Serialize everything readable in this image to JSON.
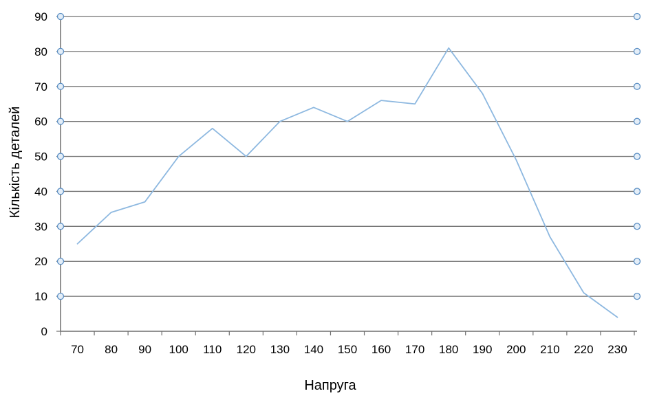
{
  "chart_data": {
    "type": "line",
    "title": "",
    "xlabel": "Напруга",
    "ylabel": "Кількість деталей",
    "x": [
      "70",
      "80",
      "90",
      "100",
      "110",
      "120",
      "130",
      "140",
      "150",
      "160",
      "170",
      "180",
      "190",
      "200",
      "210",
      "220",
      "230"
    ],
    "series": [
      {
        "values": [
          25,
          34,
          37,
          50,
          58,
          50,
          60,
          64,
          60,
          66,
          65,
          81,
          68,
          49,
          27,
          11,
          4
        ],
        "color": "#8DB8E0"
      }
    ],
    "ylim": [
      0,
      90
    ],
    "yticks": [
      0,
      10,
      20,
      30,
      40,
      50,
      60,
      70,
      80,
      90
    ],
    "grid": true,
    "legend": "none",
    "marker_color": "#5B8FC4"
  }
}
